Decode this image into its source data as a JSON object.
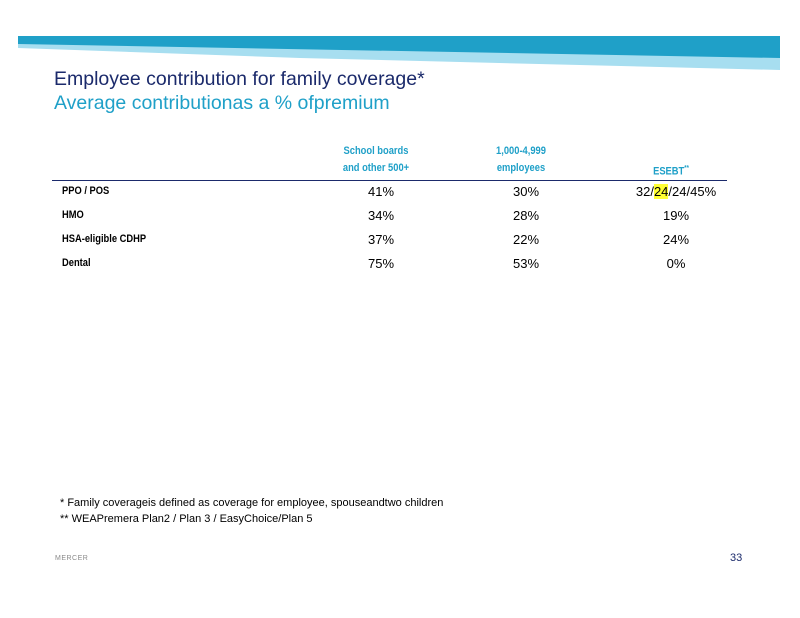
{
  "title": "Employee  contribution  for family coverage*",
  "subtitle": "Average  contributionas  a  %  ofpremium",
  "columns": [
    {
      "line1": "School       boards",
      "line2": "and     other     500+"
    },
    {
      "line1": "1,000-4,999",
      "line2": "employees"
    },
    {
      "line1": "",
      "line2": "ESEBT",
      "sup": "**"
    }
  ],
  "rows": [
    {
      "label": "PPO     /  POS",
      "values": [
        "41%",
        "30%",
        "32/24/24/45%"
      ]
    },
    {
      "label": "HMO",
      "values": [
        "34%",
        "28%",
        "19%"
      ]
    },
    {
      "label": "HSA-eligible          CDHP",
      "values": [
        "37%",
        "22%",
        "24%"
      ]
    },
    {
      "label": "Dental",
      "values": [
        "75%",
        "53%",
        "0%"
      ]
    }
  ],
  "esebt_ppo": {
    "pre": "32/",
    "highlight": "24",
    "post": "/24/45%"
  },
  "footnotes": [
    "*   Family coverageis defined as coverage for employee, spouseandtwo children",
    "**  WEAPremera Plan2 / Plan 3 / EasyChoice/Plan 5"
  ],
  "footer": {
    "brand": "MERCER",
    "page": "33"
  },
  "colors": {
    "navy": "#1b2a6b",
    "accent": "#1fa0c8",
    "band_light": "#a7def0",
    "highlight": "#ffff33"
  }
}
